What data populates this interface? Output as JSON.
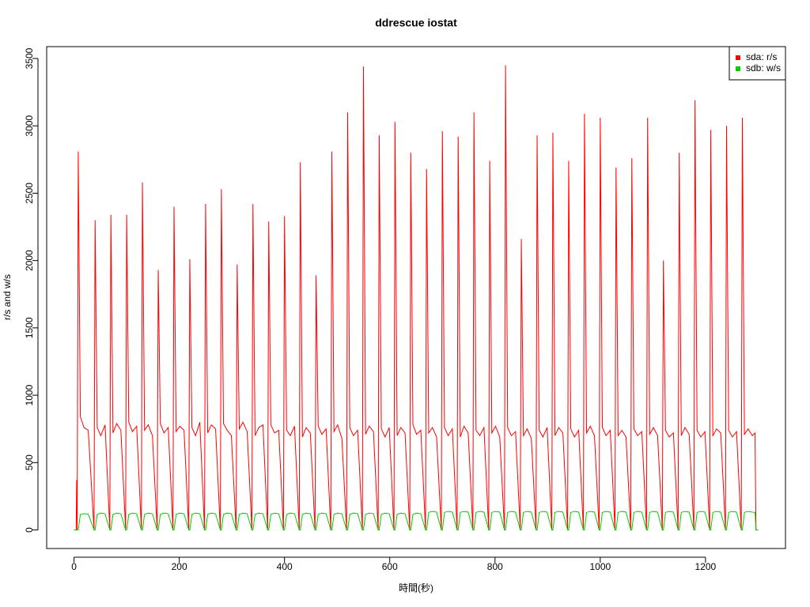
{
  "chart_data": {
    "type": "line",
    "title": "ddrescue iostat",
    "x_label": "時間(秒)",
    "y_label": "r/s and w/s",
    "xlim": [
      -52,
      1352
    ],
    "ylim": [
      -138,
      3588
    ],
    "xticks": [
      0,
      200,
      400,
      600,
      800,
      1000,
      1200
    ],
    "yticks": [
      0,
      500,
      1000,
      1500,
      2000,
      2500,
      3000,
      3500
    ],
    "legend": "topright",
    "x": [
      0,
      4,
      5,
      6,
      8,
      12,
      19,
      27,
      38,
      40,
      44,
      51,
      59,
      68,
      70,
      74,
      81,
      89,
      98,
      100,
      104,
      111,
      119,
      128,
      130,
      134,
      141,
      149,
      158,
      160,
      164,
      171,
      179,
      188,
      190,
      194,
      201,
      209,
      218,
      220,
      224,
      231,
      239,
      248,
      250,
      254,
      261,
      269,
      278,
      280,
      284,
      291,
      299,
      308,
      310,
      314,
      321,
      329,
      338,
      340,
      344,
      351,
      359,
      368,
      370,
      374,
      381,
      389,
      398,
      400,
      404,
      411,
      419,
      428,
      430,
      434,
      441,
      449,
      458,
      460,
      464,
      471,
      479,
      488,
      490,
      494,
      501,
      509,
      518,
      520,
      524,
      531,
      539,
      548,
      550,
      554,
      561,
      569,
      578,
      580,
      584,
      591,
      599,
      608,
      610,
      614,
      621,
      629,
      638,
      640,
      644,
      651,
      659,
      668,
      670,
      674,
      681,
      689,
      698,
      700,
      704,
      711,
      719,
      728,
      730,
      734,
      741,
      749,
      758,
      760,
      764,
      771,
      779,
      788,
      790,
      794,
      801,
      809,
      818,
      820,
      824,
      831,
      839,
      848,
      850,
      854,
      861,
      869,
      878,
      880,
      884,
      891,
      899,
      908,
      910,
      914,
      921,
      929,
      938,
      940,
      944,
      951,
      959,
      968,
      970,
      974,
      981,
      989,
      998,
      1000,
      1004,
      1011,
      1019,
      1028,
      1030,
      1034,
      1041,
      1049,
      1058,
      1060,
      1064,
      1071,
      1079,
      1088,
      1090,
      1094,
      1101,
      1109,
      1118,
      1120,
      1124,
      1131,
      1139,
      1148,
      1150,
      1154,
      1161,
      1169,
      1178,
      1180,
      1184,
      1191,
      1199,
      1208,
      1210,
      1214,
      1221,
      1229,
      1238,
      1240,
      1244,
      1251,
      1259,
      1268,
      1270,
      1274,
      1281,
      1289,
      1294,
      1296,
      1300
    ],
    "series": [
      {
        "name": "sda: r/s",
        "color": "#ff0000",
        "values": [
          0,
          0,
          370,
          0,
          2810,
          840,
          760,
          740,
          0,
          2300,
          760,
          700,
          780,
          0,
          2340,
          720,
          790,
          740,
          0,
          2340,
          800,
          730,
          770,
          0,
          2580,
          740,
          780,
          700,
          0,
          1930,
          790,
          720,
          760,
          0,
          2400,
          730,
          770,
          740,
          0,
          2010,
          760,
          700,
          800,
          0,
          2420,
          720,
          780,
          750,
          0,
          2530,
          790,
          740,
          700,
          0,
          1970,
          750,
          800,
          730,
          0,
          2420,
          700,
          760,
          780,
          0,
          2290,
          780,
          720,
          740,
          0,
          2330,
          740,
          700,
          770,
          0,
          2730,
          690,
          760,
          720,
          0,
          1890,
          770,
          710,
          750,
          0,
          2810,
          730,
          780,
          680,
          0,
          3100,
          760,
          700,
          740,
          0,
          3440,
          710,
          770,
          730,
          0,
          2930,
          750,
          690,
          760,
          0,
          3030,
          700,
          760,
          720,
          0,
          2800,
          780,
          710,
          740,
          0,
          2680,
          720,
          760,
          690,
          0,
          2960,
          760,
          700,
          750,
          0,
          2920,
          690,
          770,
          720,
          0,
          3100,
          740,
          700,
          760,
          0,
          2740,
          720,
          770,
          690,
          0,
          3450,
          760,
          700,
          730,
          0,
          2160,
          700,
          750,
          680,
          0,
          2930,
          740,
          690,
          760,
          0,
          2950,
          700,
          760,
          720,
          0,
          2740,
          750,
          690,
          740,
          0,
          3090,
          720,
          770,
          700,
          0,
          3060,
          760,
          700,
          740,
          0,
          2690,
          700,
          740,
          690,
          0,
          2760,
          750,
          700,
          730,
          0,
          3060,
          710,
          760,
          700,
          0,
          2000,
          740,
          690,
          720,
          0,
          2800,
          700,
          760,
          710,
          0,
          3190,
          740,
          690,
          730,
          0,
          2970,
          700,
          750,
          720,
          0,
          3000,
          740,
          690,
          730,
          0,
          3060,
          710,
          750,
          700,
          720,
          0,
          0
        ]
      },
      {
        "name": "sdb: w/s",
        "color": "#00cc00",
        "values": [
          0,
          0,
          0,
          0,
          0,
          115,
          120,
          118,
          0,
          0,
          115,
          125,
          120,
          0,
          0,
          115,
          125,
          120,
          0,
          0,
          115,
          125,
          120,
          0,
          0,
          115,
          125,
          120,
          0,
          0,
          115,
          125,
          120,
          0,
          0,
          115,
          125,
          120,
          0,
          0,
          115,
          125,
          120,
          0,
          0,
          115,
          125,
          120,
          0,
          0,
          115,
          125,
          120,
          0,
          0,
          115,
          125,
          120,
          0,
          0,
          115,
          125,
          120,
          0,
          0,
          115,
          125,
          120,
          0,
          0,
          115,
          125,
          120,
          0,
          0,
          115,
          125,
          120,
          0,
          0,
          115,
          125,
          120,
          0,
          0,
          115,
          125,
          120,
          0,
          0,
          115,
          125,
          120,
          0,
          0,
          115,
          125,
          120,
          0,
          0,
          115,
          125,
          120,
          0,
          0,
          115,
          125,
          120,
          0,
          0,
          115,
          125,
          120,
          0,
          0,
          130,
          138,
          132,
          0,
          0,
          130,
          138,
          132,
          0,
          0,
          130,
          138,
          132,
          0,
          0,
          130,
          138,
          132,
          0,
          0,
          130,
          138,
          132,
          0,
          0,
          130,
          138,
          132,
          0,
          0,
          130,
          138,
          132,
          0,
          0,
          130,
          138,
          132,
          0,
          0,
          130,
          138,
          132,
          0,
          0,
          130,
          138,
          132,
          0,
          0,
          130,
          138,
          132,
          0,
          0,
          130,
          138,
          132,
          0,
          0,
          130,
          138,
          132,
          0,
          0,
          130,
          138,
          132,
          0,
          0,
          130,
          138,
          132,
          0,
          0,
          130,
          138,
          132,
          0,
          0,
          130,
          138,
          132,
          0,
          0,
          130,
          138,
          132,
          0,
          0,
          130,
          138,
          132,
          0,
          0,
          130,
          138,
          132,
          0,
          0,
          130,
          138,
          132,
          130,
          0,
          0
        ]
      }
    ]
  }
}
